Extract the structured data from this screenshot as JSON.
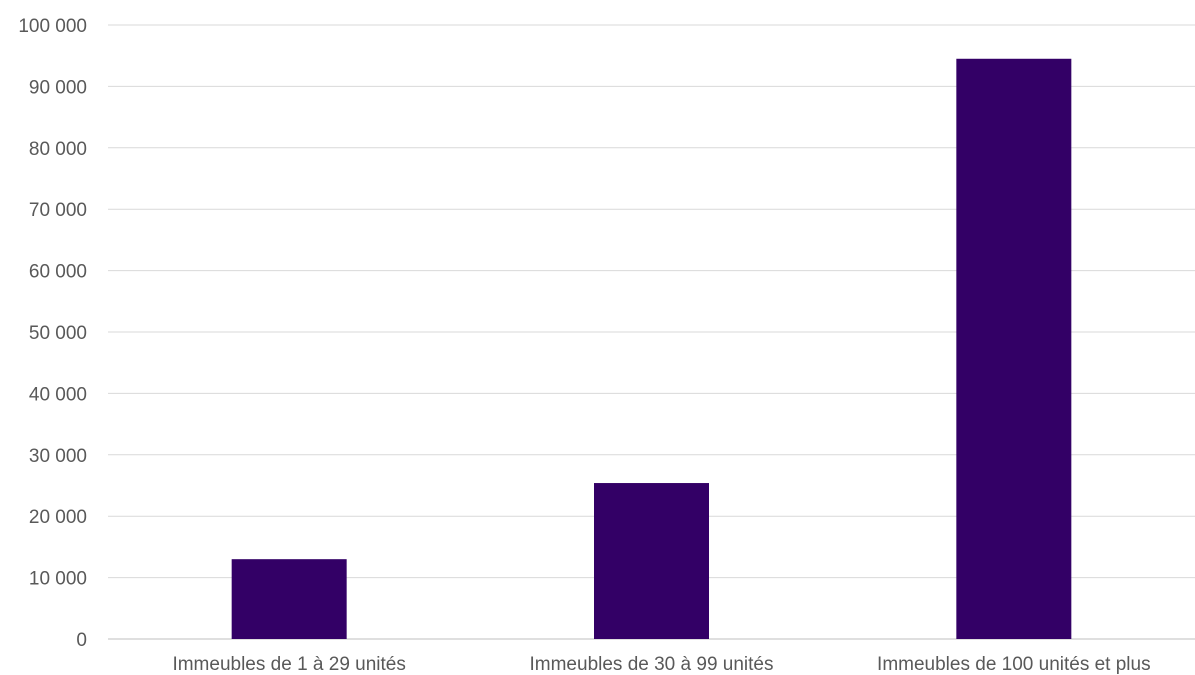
{
  "chart_data": {
    "type": "bar",
    "categories": [
      "Immeubles de 1 à 29 unités",
      "Immeubles de 30 à 99 unités",
      "Immeubles de 100 unités et plus"
    ],
    "values": [
      13000,
      25400,
      94500
    ],
    "ylim": [
      0,
      100000
    ],
    "yticks": [
      0,
      10000,
      20000,
      30000,
      40000,
      50000,
      60000,
      70000,
      80000,
      90000,
      100000
    ],
    "ytick_labels": [
      "0",
      "10 000",
      "20 000",
      "30 000",
      "40 000",
      "50 000",
      "60 000",
      "70 000",
      "80 000",
      "90 000",
      "100 000"
    ],
    "grid": true,
    "legend": "none",
    "bar_color": "#330066"
  }
}
